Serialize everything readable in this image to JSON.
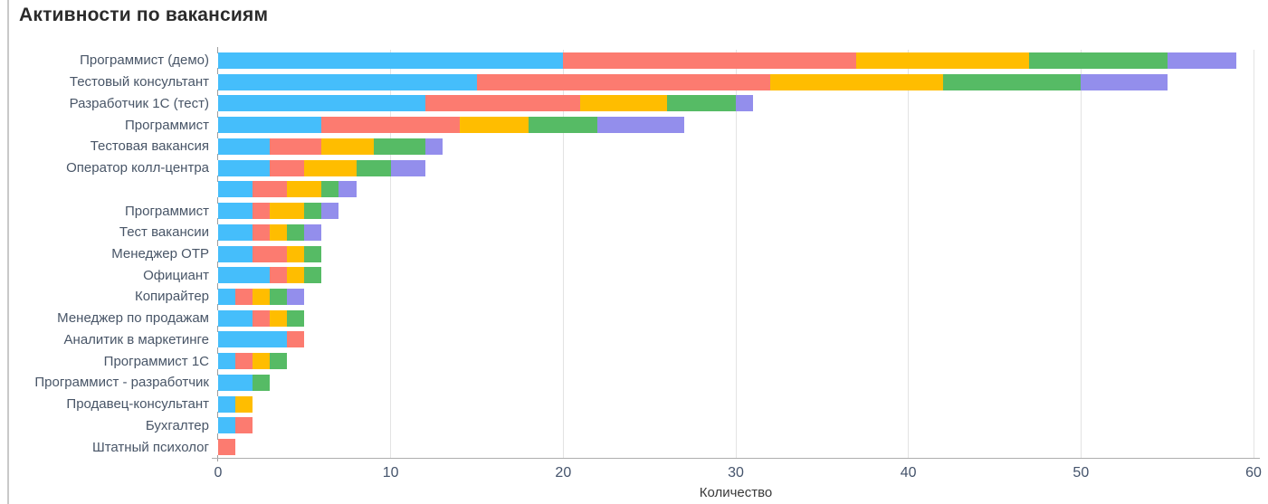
{
  "panel": {
    "title": "Активности по вакансиям"
  },
  "chart_data": {
    "type": "bar",
    "orientation": "horizontal",
    "stacked": true,
    "title": "Активности по вакансиям",
    "xlabel": "Количество",
    "ylabel": "",
    "xlim": [
      0,
      60
    ],
    "x_ticks": [
      0,
      10,
      20,
      30,
      40,
      50,
      60
    ],
    "grid": true,
    "legend": "none",
    "categories": [
      "Программист (демо)",
      "Тестовый консультант",
      "Разработчик 1С (тест)",
      "Программист",
      "Тестовая вакансия",
      "Оператор колл-центра",
      "",
      "Программист",
      "Тест вакансии",
      "Менеджер ОТР",
      "Официант",
      "Копирайтер",
      "Менеджер по продажам",
      "Аналитик в маркетинге",
      "Программист 1С",
      "Программист - разработчик",
      "Продавец-консультант",
      "Бухгалтер",
      "Штатный психолог"
    ],
    "series": [
      {
        "name": "series-1-blue",
        "color": "#45befb",
        "values": [
          20,
          15,
          12,
          6,
          3,
          3,
          2,
          2,
          2,
          2,
          3,
          1,
          2,
          4,
          1,
          2,
          1,
          1,
          0
        ]
      },
      {
        "name": "series-2-red",
        "color": "#fc7b70",
        "values": [
          17,
          17,
          9,
          8,
          3,
          2,
          2,
          1,
          1,
          2,
          1,
          1,
          1,
          1,
          1,
          0,
          0,
          1,
          1
        ]
      },
      {
        "name": "series-3-yellow",
        "color": "#ffbd00",
        "values": [
          10,
          10,
          5,
          4,
          3,
          3,
          2,
          2,
          1,
          1,
          1,
          1,
          1,
          0,
          1,
          0,
          1,
          0,
          0
        ]
      },
      {
        "name": "series-4-green",
        "color": "#56bb65",
        "values": [
          8,
          8,
          4,
          4,
          3,
          2,
          1,
          1,
          1,
          1,
          1,
          1,
          1,
          0,
          1,
          1,
          0,
          0,
          0
        ]
      },
      {
        "name": "series-5-purple",
        "color": "#938eec",
        "values": [
          4,
          5,
          1,
          5,
          1,
          2,
          1,
          1,
          1,
          0,
          0,
          1,
          0,
          0,
          0,
          0,
          0,
          0,
          0
        ]
      }
    ],
    "totals": [
      59,
      55,
      31,
      27,
      13,
      12,
      8,
      7,
      6,
      6,
      6,
      5,
      5,
      5,
      4,
      3,
      2,
      2,
      1
    ],
    "colors_meta": {
      "gridline": "#e3e3e3",
      "axis_line": "#aeaeae",
      "category_label": "#485567",
      "tick_label": "#44536b",
      "title_text": "#2b2b2b"
    }
  }
}
